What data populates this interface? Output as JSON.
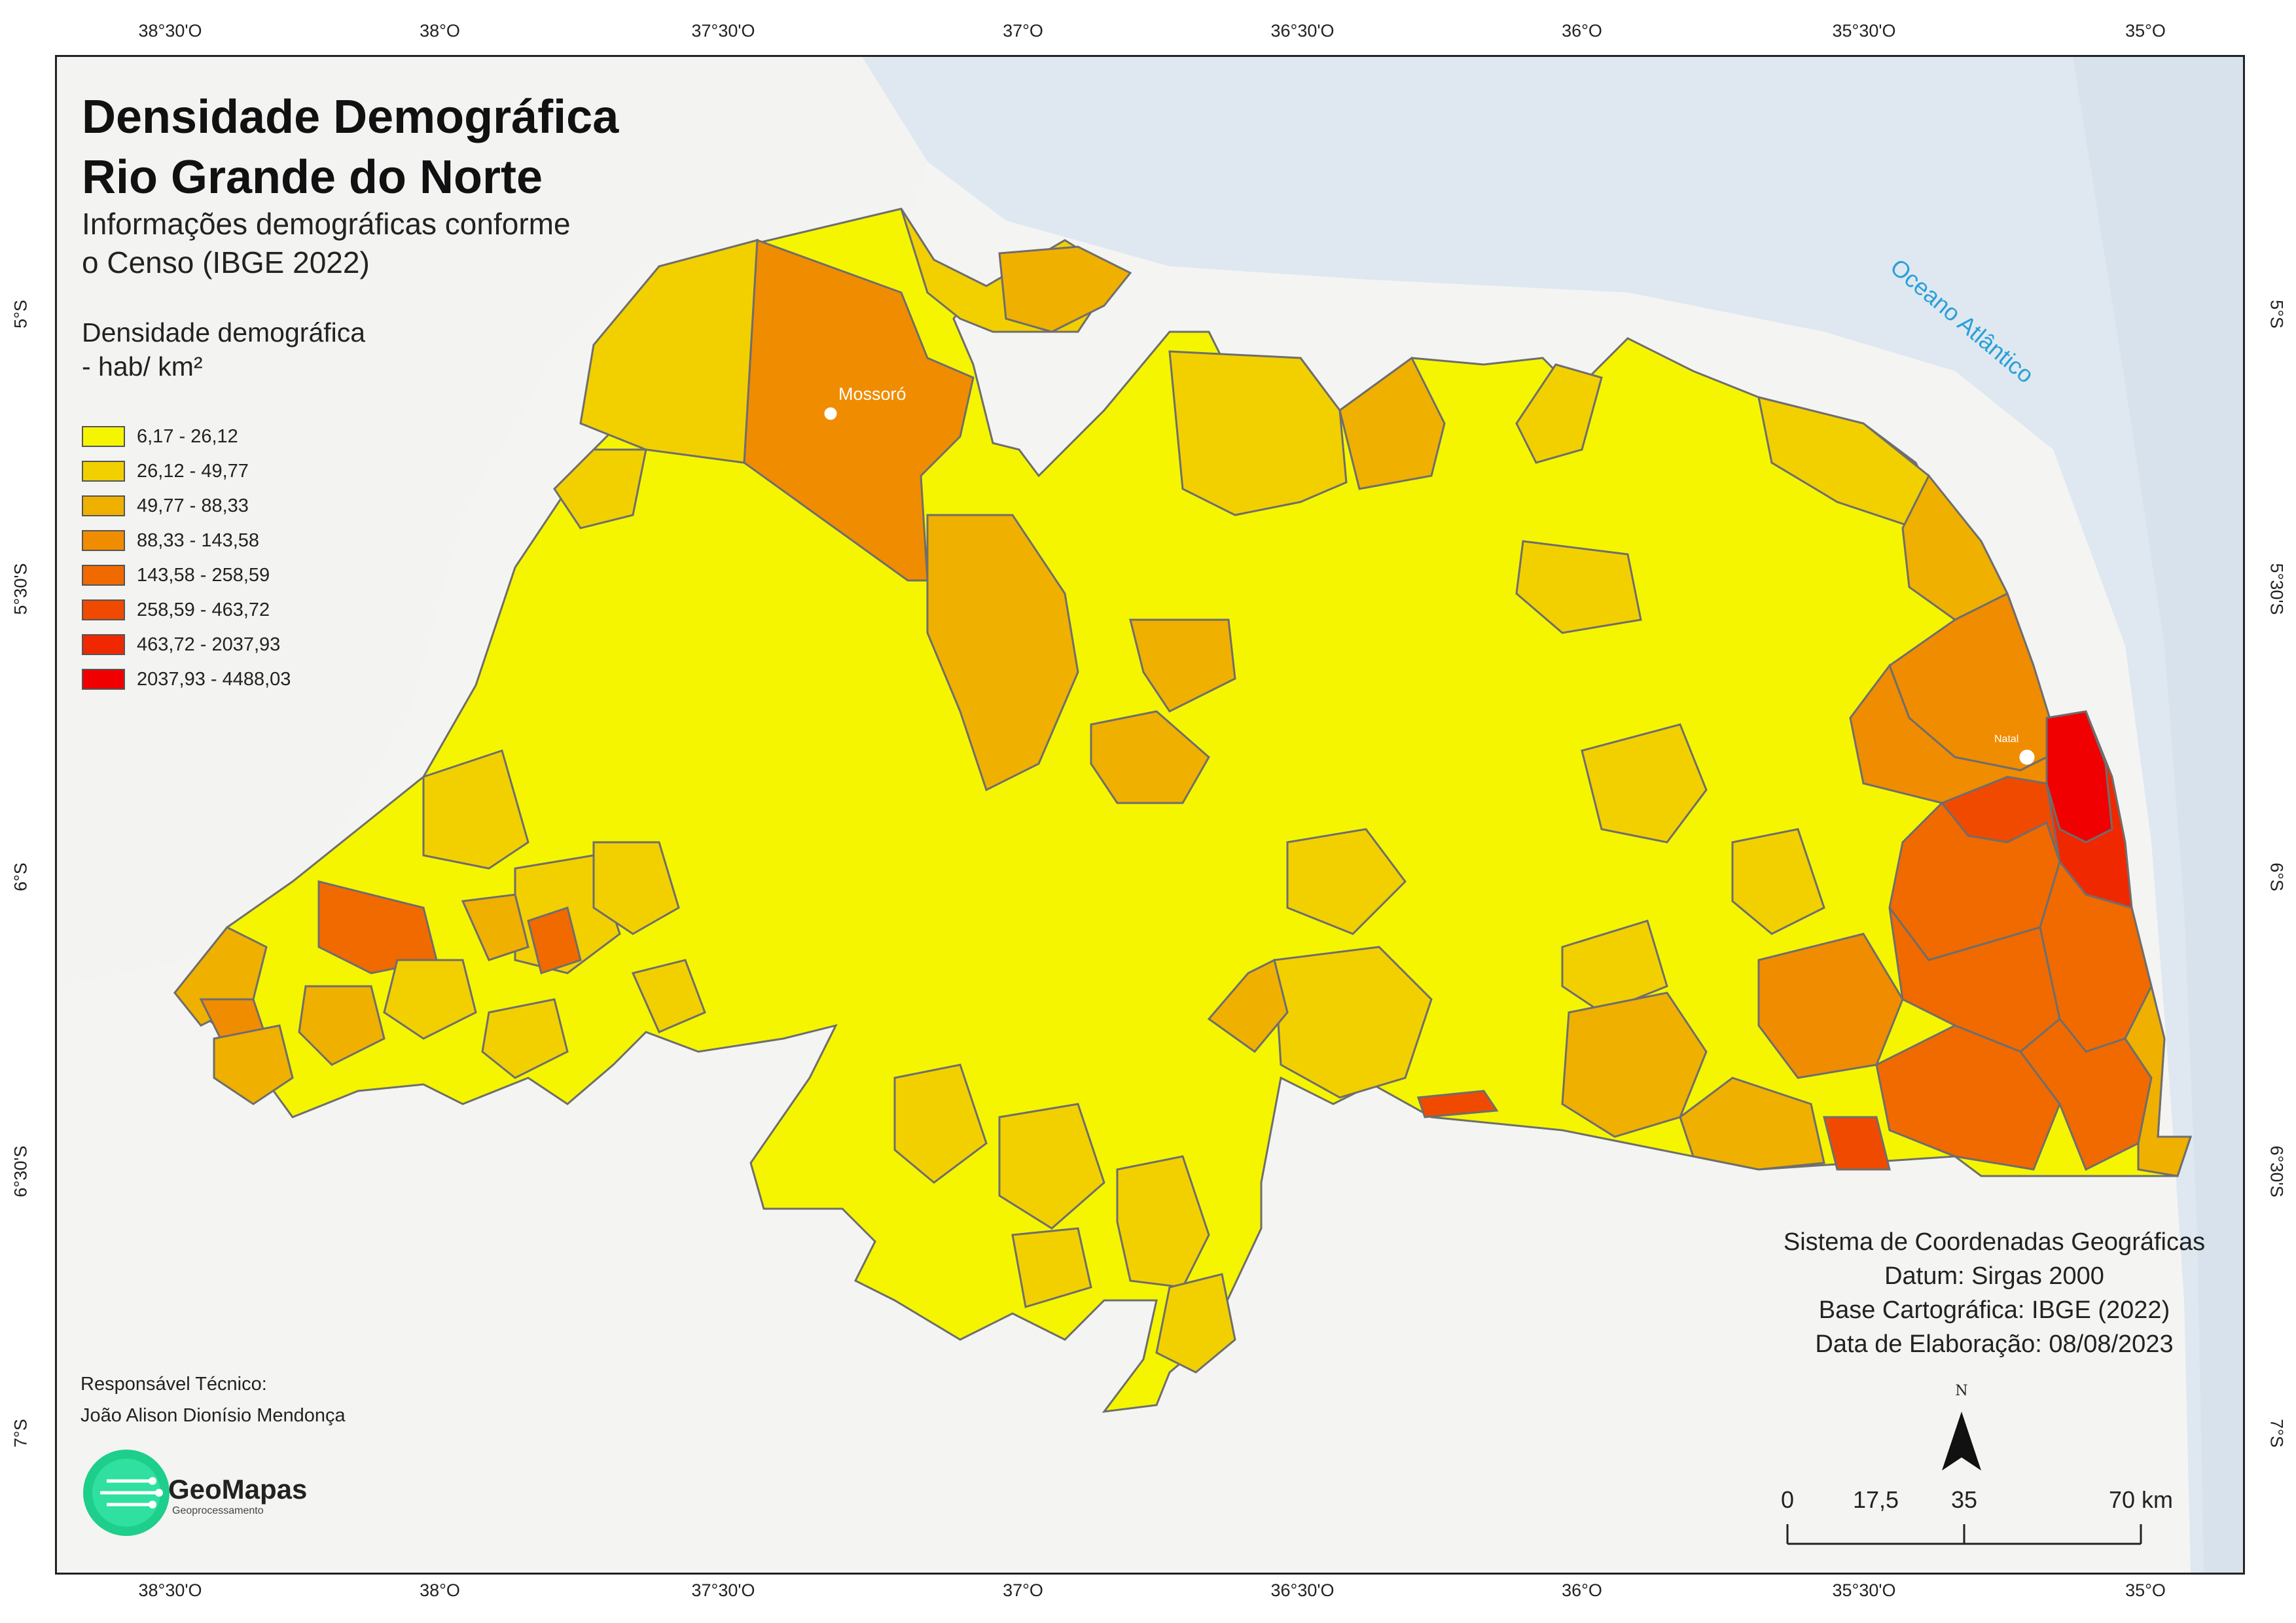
{
  "map": {
    "title_line1": "Densidade Demográfica",
    "title_line2": "Rio Grande do Norte",
    "subtitle_line1": "Informações demográficas conforme",
    "subtitle_line2": "o Censo (IBGE 2022)",
    "ocean_label": "Oceano Atlântico",
    "cities": [
      {
        "name": "Mossoró"
      },
      {
        "name": "Natal"
      }
    ],
    "colors": {
      "ocean": "#dfe8f0",
      "land_background": "#f3f4f2",
      "boundary": "#6e6e6e",
      "frame": "#222222"
    }
  },
  "legend": {
    "title": "Densidade demográfica - hab/ km²",
    "classes": [
      {
        "label": "6,17 - 26,12",
        "color": "#f5f500"
      },
      {
        "label": "26,12 - 49,77",
        "color": "#f2d000"
      },
      {
        "label": "49,77 - 88,33",
        "color": "#f0b000"
      },
      {
        "label": "88,33 - 143,58",
        "color": "#f08c00"
      },
      {
        "label": "143,58 - 258,59",
        "color": "#f06a00"
      },
      {
        "label": "258,59 - 463,72",
        "color": "#f04a00"
      },
      {
        "label": "463,72 - 2037,93",
        "color": "#f02800"
      },
      {
        "label": "2037,93 - 4488,03",
        "color": "#f00000"
      }
    ]
  },
  "axes": {
    "longitude_ticks": [
      "38°30'O",
      "38°O",
      "37°30'O",
      "37°O",
      "36°30'O",
      "36°O",
      "35°30'O",
      "35°O"
    ],
    "latitude_ticks": [
      "5°S",
      "5°30'S",
      "6°S",
      "6°30'S",
      "7°S"
    ]
  },
  "metadata": {
    "line1": "Sistema de Coordenadas Geográficas",
    "line2": "Datum: Sirgas 2000",
    "line3": "Base Cartográfica: IBGE (2022)",
    "line4": "Data de Elaboração: 08/08/2023"
  },
  "credits": {
    "label": "Responsável Técnico:",
    "name": "João Alison Dionísio Mendonça",
    "logo_name": "GeoMapas",
    "logo_sub": "Geoprocessamento"
  },
  "scale_bar": {
    "labels": [
      "0",
      "17,5",
      "35",
      "70 km"
    ]
  },
  "north_arrow": {
    "label": "N"
  }
}
